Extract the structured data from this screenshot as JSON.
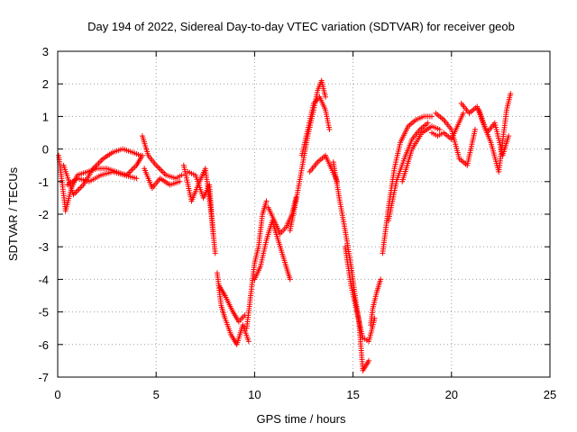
{
  "chart_data": {
    "type": "scatter",
    "title": "Day 194 of 2022, Sidereal Day-to-day VTEC variation (SDTVAR) for receiver geob",
    "xlabel": "GPS time / hours",
    "ylabel": "SDTVAR / TECUs",
    "xlim": [
      0,
      25
    ],
    "ylim": [
      -7,
      3
    ],
    "xticks": [
      "0",
      "5",
      "10",
      "15",
      "20",
      "25"
    ],
    "yticks": [
      "3",
      "2",
      "1",
      "0",
      "-1",
      "-2",
      "-3",
      "-4",
      "-5",
      "-6",
      "-7"
    ],
    "grid": true,
    "marker": "+",
    "series": [
      {
        "name": "SDTVAR",
        "color": "#ff0000",
        "tracks": [
          {
            "x": [
              0.05,
              0.2,
              0.4,
              0.7,
              1.0,
              1.5,
              2.0,
              2.5,
              3.0,
              3.5,
              4.0,
              4.3
            ],
            "y": [
              -0.2,
              -0.9,
              -1.9,
              -1.2,
              -0.8,
              -0.7,
              -0.6,
              -0.6,
              -0.7,
              -0.8,
              -0.5,
              -0.2
            ]
          },
          {
            "x": [
              0.3,
              0.8,
              1.3,
              1.8,
              2.3,
              2.8,
              3.3,
              3.8,
              4.2
            ],
            "y": [
              -0.5,
              -1.4,
              -1.1,
              -0.6,
              -0.3,
              -0.1,
              -0.0,
              -0.1,
              -0.2
            ]
          },
          {
            "x": [
              0.5,
              1.0,
              1.6,
              2.2,
              2.8,
              3.4,
              4.0
            ],
            "y": [
              -1.1,
              -0.9,
              -1.0,
              -0.8,
              -0.7,
              -0.8,
              -0.9
            ]
          },
          {
            "x": [
              4.3,
              4.6,
              5.0,
              5.5,
              6.0,
              6.3
            ],
            "y": [
              0.4,
              -0.2,
              -0.5,
              -0.8,
              -0.9,
              -0.8
            ]
          },
          {
            "x": [
              4.4,
              4.8,
              5.2,
              5.7,
              6.2
            ],
            "y": [
              -0.6,
              -1.2,
              -0.9,
              -1.1,
              -1.0
            ]
          },
          {
            "x": [
              6.4,
              6.8,
              7.2,
              7.5,
              7.8,
              8.0
            ],
            "y": [
              -0.5,
              -1.6,
              -1.0,
              -0.6,
              -2.0,
              -3.2
            ]
          },
          {
            "x": [
              6.6,
              7.0,
              7.4,
              7.7,
              7.9
            ],
            "y": [
              -0.7,
              -0.8,
              -1.5,
              -1.1,
              -2.6
            ]
          },
          {
            "x": [
              8.1,
              8.3,
              8.5,
              8.8,
              9.1,
              9.4,
              9.7
            ],
            "y": [
              -3.8,
              -4.8,
              -5.2,
              -5.7,
              -6.0,
              -5.4,
              -5.9
            ]
          },
          {
            "x": [
              8.2,
              8.5,
              8.9,
              9.2,
              9.5
            ],
            "y": [
              -4.2,
              -4.5,
              -5.0,
              -5.3,
              -5.1
            ]
          },
          {
            "x": [
              9.6,
              9.8,
              10.0,
              10.2,
              10.4,
              10.6
            ],
            "y": [
              -5.5,
              -4.5,
              -3.5,
              -3.0,
              -2.0,
              -1.6
            ]
          },
          {
            "x": [
              10.0,
              10.3,
              10.6,
              10.9,
              11.2,
              11.6,
              11.8
            ],
            "y": [
              -4.0,
              -3.6,
              -2.8,
              -2.2,
              -2.8,
              -3.6,
              -4.0
            ]
          },
          {
            "x": [
              10.7,
              11.0,
              11.3,
              11.6,
              11.9,
              12.1
            ],
            "y": [
              -1.8,
              -2.2,
              -2.6,
              -2.4,
              -2.0,
              -1.5
            ]
          },
          {
            "x": [
              11.8,
              12.1,
              12.4,
              12.7,
              13.0,
              13.2,
              13.4,
              13.6
            ],
            "y": [
              -2.5,
              -1.6,
              -0.6,
              0.4,
              1.2,
              1.8,
              2.1,
              1.6
            ]
          },
          {
            "x": [
              12.4,
              12.7,
              13.0,
              13.3,
              13.6,
              13.8
            ],
            "y": [
              -0.2,
              0.6,
              1.4,
              1.6,
              1.2,
              0.6
            ]
          },
          {
            "x": [
              12.8,
              13.2,
              13.6,
              13.9,
              14.2
            ],
            "y": [
              -0.7,
              -0.4,
              -0.2,
              -0.6,
              -1.0
            ]
          },
          {
            "x": [
              14.0,
              14.3,
              14.6,
              14.9,
              15.1,
              15.3,
              15.5,
              15.8
            ],
            "y": [
              -0.4,
              -1.5,
              -2.5,
              -3.6,
              -4.5,
              -5.3,
              -6.8,
              -6.5
            ]
          },
          {
            "x": [
              14.6,
              14.9,
              15.2,
              15.5,
              15.8,
              16.1
            ],
            "y": [
              -3.0,
              -4.2,
              -5.0,
              -5.8,
              -5.9,
              -5.2
            ]
          },
          {
            "x": [
              15.9,
              16.0,
              16.2,
              16.4
            ],
            "y": [
              -5.4,
              -4.9,
              -4.4,
              -4.0
            ]
          },
          {
            "x": [
              16.5,
              16.8,
              17.1,
              17.4,
              17.8,
              18.2,
              18.6,
              19.0
            ],
            "y": [
              -3.2,
              -1.8,
              -0.6,
              0.2,
              0.7,
              0.9,
              1.0,
              1.0
            ]
          },
          {
            "x": [
              16.8,
              17.2,
              17.6,
              18.0,
              18.4,
              18.8
            ],
            "y": [
              -2.2,
              -1.0,
              -0.3,
              0.3,
              0.6,
              0.8
            ]
          },
          {
            "x": [
              17.5,
              18.0,
              18.5,
              19.0,
              19.4
            ],
            "y": [
              -1.0,
              0.0,
              0.5,
              0.7,
              0.6
            ]
          },
          {
            "x": [
              19.0,
              19.3,
              19.6,
              20.0,
              20.3,
              20.6
            ],
            "y": [
              0.5,
              0.4,
              0.5,
              0.3,
              0.7,
              1.1
            ]
          },
          {
            "x": [
              19.2,
              19.6,
              20.0,
              20.4,
              20.8,
              21.2
            ],
            "y": [
              1.1,
              0.9,
              0.6,
              -0.3,
              -0.5,
              0.6
            ]
          },
          {
            "x": [
              20.5,
              20.9,
              21.3,
              21.6,
              22.0,
              22.4,
              22.8,
              23.0
            ],
            "y": [
              1.4,
              1.1,
              1.3,
              0.8,
              0.2,
              -0.7,
              1.2,
              1.7
            ]
          },
          {
            "x": [
              21.4,
              21.8,
              22.2,
              22.6,
              22.9
            ],
            "y": [
              1.2,
              0.5,
              0.8,
              -0.2,
              0.4
            ]
          }
        ]
      }
    ]
  }
}
